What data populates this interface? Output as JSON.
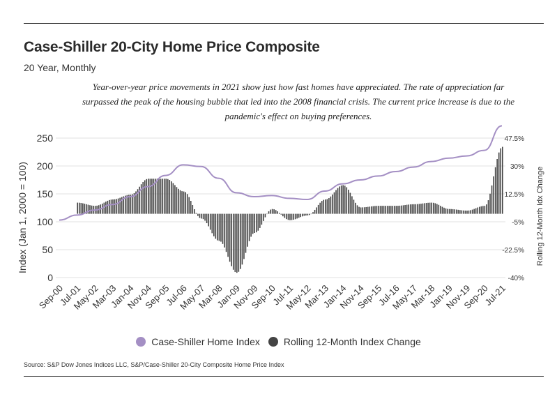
{
  "header": {
    "title": "Case-Shiller 20-City Home Price Composite",
    "subtitle": "20 Year, Monthly",
    "description": "Year-over-year price movements in 2021 show just how fast homes have appreciated. The rate of appreciation far surpassed the peak of the housing bubble that led into the 2008 financial crisis. The current price increase is due to the pandemic's effect on buying preferences."
  },
  "footer": {
    "source": "Source:  S&P Dow Jones Indices LLC, S&P/Case-Shiller 20-City Composite Home Price Index"
  },
  "colors": {
    "line": "#a48fc4",
    "bars": "#444444",
    "grid": "#e2e2e2"
  },
  "chart_data": {
    "type": "bar+line",
    "title": "Case-Shiller 20-City Home Price Composite",
    "subtitle": "20 Year, Monthly",
    "ylabel": "Index (Jan 1, 2000 = 100)",
    "y2label": "Rolling 12-Month Idx Change",
    "ylim": [
      0,
      250
    ],
    "y_ticks": [
      0,
      50,
      100,
      150,
      200,
      250
    ],
    "y2lim": [
      -40,
      47.5
    ],
    "y2_ticks": [
      "47.5%",
      "30%",
      "12.5%",
      "-5%",
      "-22.5%",
      "-40%"
    ],
    "y2_tick_values": [
      47.5,
      30,
      12.5,
      -5,
      -22.5,
      -40
    ],
    "x_start": "Sep-00",
    "x_end": "Jul-21",
    "tick_labels": [
      "Sep-00",
      "Jul-01",
      "May-02",
      "Mar-03",
      "Jan-04",
      "Nov-04",
      "Sep-05",
      "Jul-06",
      "May-07",
      "Mar-08",
      "Jan-09",
      "Nov-09",
      "Sep-10",
      "Jul-11",
      "May-12",
      "Mar-13",
      "Jan-14",
      "Nov-14",
      "Sep-15",
      "Jul-16",
      "May-17",
      "Mar-18",
      "Jan-19",
      "Nov-19",
      "Sep-20",
      "Jul-21"
    ],
    "legend": [
      "Case-Shiller Home Index",
      "Rolling 12-Month Index Change"
    ],
    "legend_position": "bottom",
    "series": [
      {
        "name": "Case-Shiller Home Index",
        "kind": "line",
        "axis": "left",
        "points": [
          [
            "Sep-00",
            103
          ],
          [
            "Jul-01",
            112
          ],
          [
            "May-02",
            121
          ],
          [
            "Mar-03",
            131
          ],
          [
            "Jan-04",
            145
          ],
          [
            "Nov-04",
            163
          ],
          [
            "Sep-05",
            183
          ],
          [
            "Jul-06",
            202
          ],
          [
            "May-07",
            199
          ],
          [
            "Mar-08",
            178
          ],
          [
            "Jan-09",
            152
          ],
          [
            "Nov-09",
            145
          ],
          [
            "Sep-10",
            147
          ],
          [
            "Jul-11",
            142
          ],
          [
            "May-12",
            140
          ],
          [
            "Mar-13",
            155
          ],
          [
            "Jan-14",
            168
          ],
          [
            "Nov-14",
            175
          ],
          [
            "Sep-15",
            182
          ],
          [
            "Jul-16",
            190
          ],
          [
            "May-17",
            198
          ],
          [
            "Mar-18",
            208
          ],
          [
            "Jan-19",
            214
          ],
          [
            "Nov-19",
            218
          ],
          [
            "Sep-20",
            228
          ],
          [
            "Jul-21",
            272
          ]
        ]
      },
      {
        "name": "Rolling 12-Month Index Change",
        "kind": "bar",
        "axis": "right",
        "points": [
          [
            "Sep-00",
            null
          ],
          [
            "Jul-01",
            7
          ],
          [
            "May-02",
            5
          ],
          [
            "Mar-03",
            9
          ],
          [
            "Jan-04",
            12
          ],
          [
            "Nov-04",
            22
          ],
          [
            "Sep-05",
            22
          ],
          [
            "Jul-06",
            14
          ],
          [
            "May-07",
            -3
          ],
          [
            "Mar-08",
            -17
          ],
          [
            "Jan-09",
            -37
          ],
          [
            "Nov-09",
            -12
          ],
          [
            "Sep-10",
            3
          ],
          [
            "Jul-11",
            -4
          ],
          [
            "May-12",
            -1
          ],
          [
            "Mar-13",
            9
          ],
          [
            "Jan-14",
            18
          ],
          [
            "Nov-14",
            4
          ],
          [
            "Sep-15",
            5
          ],
          [
            "Jul-16",
            5
          ],
          [
            "May-17",
            6
          ],
          [
            "Mar-18",
            7
          ],
          [
            "Jan-19",
            3
          ],
          [
            "Nov-19",
            2
          ],
          [
            "Sep-20",
            5
          ],
          [
            "Jul-21",
            42
          ]
        ]
      }
    ]
  }
}
